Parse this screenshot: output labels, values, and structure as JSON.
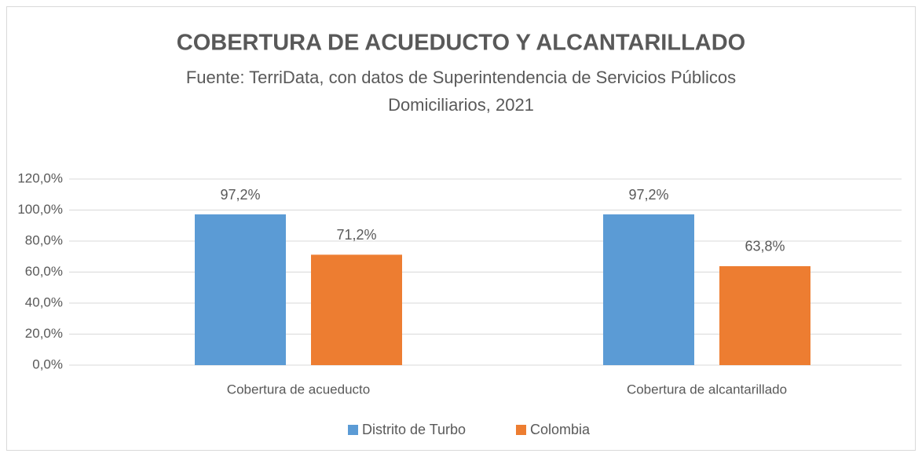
{
  "chart_data": {
    "type": "bar",
    "title": "COBERTURA DE ACUEDUCTO Y ALCANTARILLADO",
    "subtitle": [
      "Fuente: TerriData, con datos de Superintendencia de Servicios Públicos",
      "Domiciliarios, 2021"
    ],
    "categories": [
      "Cobertura de acueducto",
      "Cobertura de alcantarillado"
    ],
    "series": [
      {
        "name": "Distrito de Turbo",
        "color": "#5b9bd5",
        "values": [
          97.2,
          97.2
        ],
        "value_labels": [
          "97,2%",
          "97,2%"
        ]
      },
      {
        "name": "Colombia",
        "color": "#ed7d31",
        "values": [
          71.2,
          63.8
        ],
        "value_labels": [
          "71,2%",
          "63,8%"
        ]
      }
    ],
    "ylim": [
      0,
      120
    ],
    "yticks": [
      {
        "value": 0,
        "label": "0,0%"
      },
      {
        "value": 20,
        "label": "20,0%"
      },
      {
        "value": 40,
        "label": "40,0%"
      },
      {
        "value": 60,
        "label": "60,0%"
      },
      {
        "value": 80,
        "label": "80,0%"
      },
      {
        "value": 100,
        "label": "100,0%"
      },
      {
        "value": 120,
        "label": "120,0%"
      }
    ],
    "grid": true,
    "legend": "bottom"
  }
}
